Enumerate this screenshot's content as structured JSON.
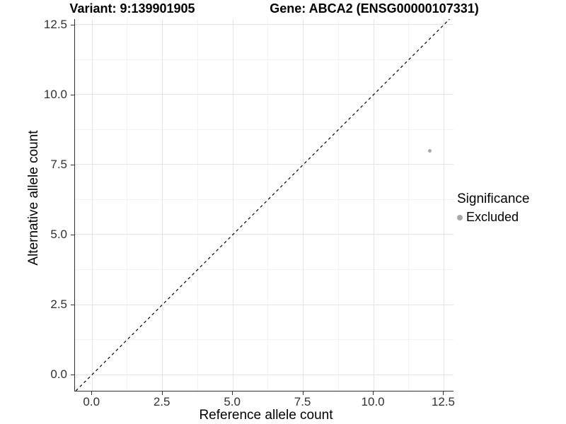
{
  "header": {
    "variant_title": "Variant: 9:139901905",
    "gene_title": "Gene: ABCA2 (ENSG00000107331)"
  },
  "legend": {
    "title": "Significance",
    "items": [
      {
        "label": "Excluded",
        "color": "#a8a8a8"
      }
    ]
  },
  "colors": {
    "point": "#a8a8a8",
    "axis_line": "#333333",
    "tick_label": "#303030",
    "grid_major": "#e4e4e4",
    "grid_minor": "#f2f2f2",
    "reference_line": "#000000"
  },
  "chart_data": {
    "type": "scatter",
    "title": "Variant: 9:139901905   |   Gene: ABCA2 (ENSG00000107331)",
    "xlabel": "Reference allele count",
    "ylabel": "Alternative allele count",
    "xlim": [
      -0.61,
      12.84
    ],
    "ylim": [
      -0.58,
      12.7
    ],
    "x_ticks": [
      0.0,
      2.5,
      5.0,
      7.5,
      10.0,
      12.5
    ],
    "x_tick_labels": [
      "0.0",
      "2.5",
      "5.0",
      "7.5",
      "10.0",
      "12.5"
    ],
    "y_ticks": [
      0.0,
      2.5,
      5.0,
      7.5,
      10.0,
      12.5
    ],
    "y_tick_labels": [
      "0.0",
      "2.5",
      "5.0",
      "7.5",
      "10.0",
      "12.5"
    ],
    "minor_ticks": [
      1.25,
      3.75,
      6.25,
      8.75,
      11.25
    ],
    "grid": "major+minor",
    "legend_position": "right",
    "series": [
      {
        "name": "Excluded",
        "color": "#a8a8a8",
        "points": [
          {
            "x": 12,
            "y": 8
          }
        ]
      }
    ],
    "reference_line": {
      "type": "identity",
      "slope": 1,
      "intercept": 0,
      "style": "dashed",
      "color": "#000000"
    }
  }
}
